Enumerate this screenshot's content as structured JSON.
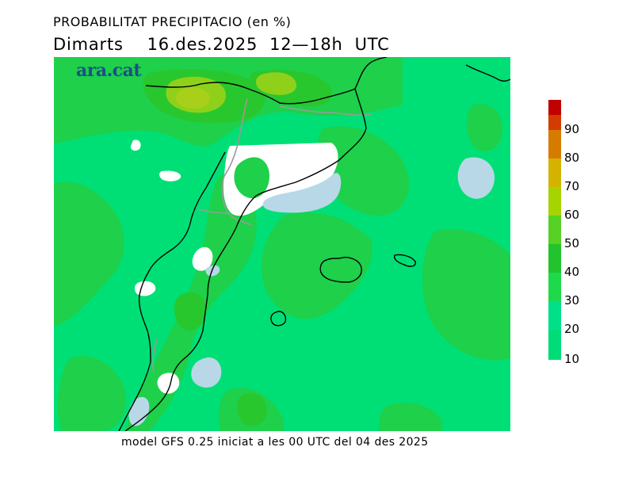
{
  "header": {
    "title": "PROBABILITAT PRECIPITACIO (en %)",
    "subtitle": "Dimarts    16.des.2025  12—18h  UTC"
  },
  "brand": {
    "label": "ara.cat"
  },
  "footer": {
    "text": "model GFS 0.25 iniciat a les 00 UTC del 04 des 2025"
  },
  "legend": {
    "labels": [
      "90",
      "80",
      "70",
      "60",
      "50",
      "40",
      "30",
      "20",
      "10"
    ],
    "colors": [
      "#c10000",
      "#d23c00",
      "#d77b00",
      "#d4b300",
      "#a5d400",
      "#56d124",
      "#22c42e",
      "#1ed94b",
      "#00e08a",
      "#00dc78"
    ]
  },
  "map": {
    "colors": {
      "background": "#00df76",
      "p20": "#1ed04a",
      "p30": "#29c72e",
      "p50": "#8fd11a",
      "p60": "#a8cf1a",
      "under10": "#ffffff",
      "sea_under10": "#b8d8e8",
      "border": "#000000",
      "province_border": "#9a9a9a"
    }
  }
}
